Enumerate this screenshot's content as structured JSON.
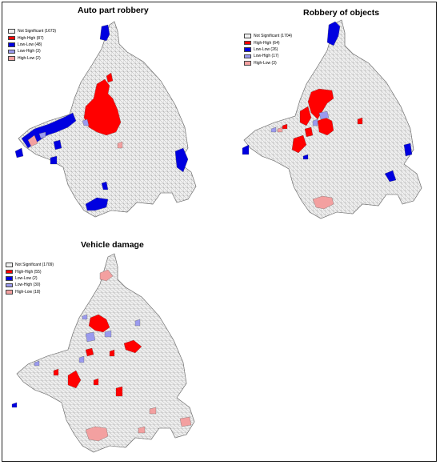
{
  "colors": {
    "not_significant": "#f0f0f0",
    "high_high": "#ff0000",
    "low_low": "#0000e0",
    "low_high": "#9a9aee",
    "high_low": "#f3a0a0",
    "boundary": "#8c8c8c"
  },
  "panels": [
    {
      "title": "Auto part robbery",
      "legend": [
        {
          "category": "not_significant",
          "label": "Not Significant (1673)"
        },
        {
          "category": "high_high",
          "label": "High-High (87)"
        },
        {
          "category": "low_low",
          "label": "Low-Low (48)"
        },
        {
          "category": "low_high",
          "label": "Low-High (3)"
        },
        {
          "category": "high_low",
          "label": "High-Low (2)"
        }
      ]
    },
    {
      "title": "Robbery of objects",
      "legend": [
        {
          "category": "not_significant",
          "label": "Not Significant (1704)"
        },
        {
          "category": "high_high",
          "label": "High-High (64)"
        },
        {
          "category": "low_low",
          "label": "Low-Low (26)"
        },
        {
          "category": "low_high",
          "label": "Low-High (17)"
        },
        {
          "category": "high_low",
          "label": "High-Low (3)"
        }
      ]
    },
    {
      "title": "Vehicle damage",
      "legend": [
        {
          "category": "not_significant",
          "label": "Not Significant (1709)"
        },
        {
          "category": "high_high",
          "label": "High-High (55)"
        },
        {
          "category": "low_low",
          "label": "Low-Low (2)"
        },
        {
          "category": "low_high",
          "label": "Low-High (30)"
        },
        {
          "category": "high_low",
          "label": "High-Low (18)"
        }
      ]
    }
  ]
}
